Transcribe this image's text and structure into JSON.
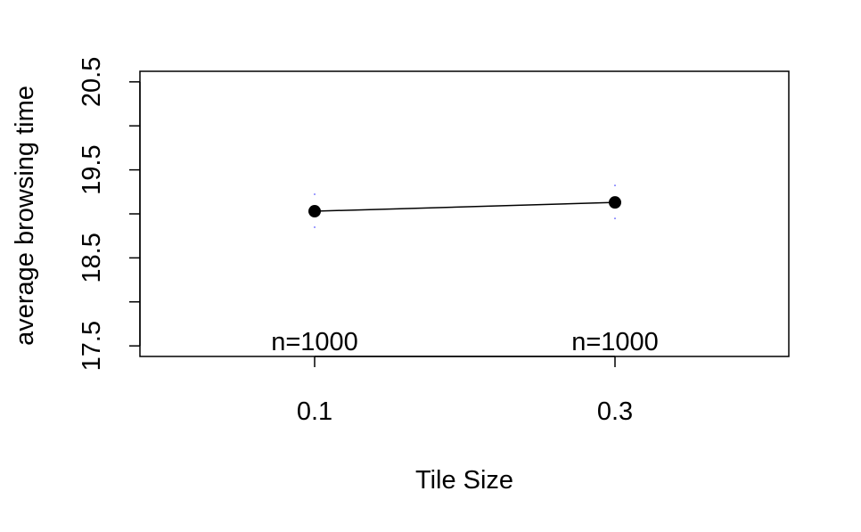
{
  "chart_data": {
    "type": "line",
    "title": "",
    "xlabel": "Tile Size",
    "ylabel": "average  browsing time",
    "categories": [
      "0.1",
      "0.3"
    ],
    "series": [
      {
        "values": [
          19.03,
          19.13
        ],
        "ci_upper": [
          19.23,
          19.33
        ],
        "ci_lower": [
          18.83,
          18.93
        ],
        "n_labels": [
          "n=1000",
          "n=1000"
        ]
      }
    ],
    "ylim": [
      17.38,
      20.62
    ],
    "yticks": [
      17.5,
      18.0,
      18.5,
      19.0,
      19.5,
      20.0,
      20.5
    ],
    "ytick_labels": [
      "17.5",
      "18.5",
      "19.5",
      "20.5"
    ],
    "grid": false,
    "colors": {
      "line": "#000000",
      "errorbar": "#0000ff"
    }
  }
}
